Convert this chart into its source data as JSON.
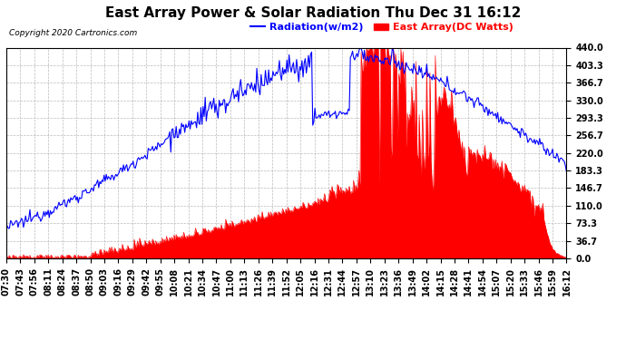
{
  "title": "East Array Power & Solar Radiation Thu Dec 31 16:12",
  "copyright": "Copyright 2020 Cartronics.com",
  "legend_radiation": "Radiation(w/m2)",
  "legend_east_array": "East Array(DC Watts)",
  "yticks": [
    0.0,
    36.7,
    73.3,
    110.0,
    146.7,
    183.3,
    220.0,
    256.7,
    293.3,
    330.0,
    366.7,
    403.3,
    440.0
  ],
  "ymax": 440.0,
  "ymin": 0.0,
  "radiation_color": "#0000FF",
  "east_array_color": "#FF0000",
  "background_color": "#FFFFFF",
  "grid_color": "#AAAAAA",
  "title_fontsize": 11,
  "tick_fontsize": 7.0,
  "xtick_labels": [
    "07:30",
    "07:43",
    "07:56",
    "08:11",
    "08:24",
    "08:37",
    "08:50",
    "09:03",
    "09:16",
    "09:29",
    "09:42",
    "09:55",
    "10:08",
    "10:21",
    "10:34",
    "10:47",
    "11:00",
    "11:13",
    "11:26",
    "11:39",
    "11:52",
    "12:05",
    "12:16",
    "12:31",
    "12:44",
    "12:57",
    "13:10",
    "13:23",
    "13:36",
    "13:49",
    "14:02",
    "14:15",
    "14:28",
    "14:41",
    "14:54",
    "15:07",
    "15:20",
    "15:33",
    "15:46",
    "15:59",
    "16:12"
  ]
}
